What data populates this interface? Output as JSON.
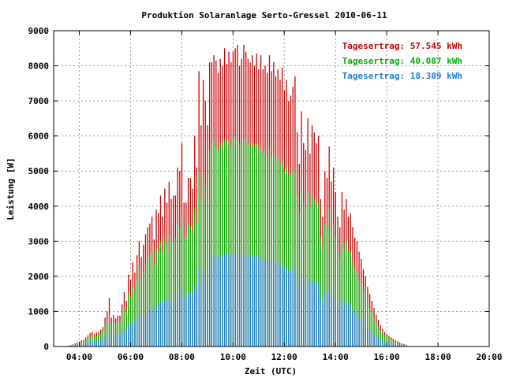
{
  "chart_data": {
    "type": "bar",
    "title": "Produktion Solaranlage Serto-Gressel 2010-06-11",
    "xlabel": "Zeit (UTC)",
    "ylabel": "Leistung [W]",
    "ylim": [
      0,
      9000
    ],
    "xlim": [
      "03:00",
      "20:00"
    ],
    "yticks": [
      "0",
      "1000",
      "2000",
      "3000",
      "4000",
      "5000",
      "6000",
      "7000",
      "8000",
      "9000"
    ],
    "xticks": [
      "04:00",
      "06:00",
      "08:00",
      "10:00",
      "12:00",
      "14:00",
      "16:00",
      "18:00",
      "20:00"
    ],
    "grid": true,
    "legend_position": "top-right",
    "interval_minutes": 5,
    "start_time": "03:35",
    "series": [
      {
        "name": "Tagesertrag: 57.545 kWh",
        "color": "#cc0000",
        "values": [
          20,
          40,
          60,
          90,
          110,
          140,
          170,
          200,
          260,
          320,
          380,
          420,
          360,
          400,
          420,
          480,
          560,
          820,
          1000,
          1380,
          820,
          900,
          800,
          880,
          880,
          1200,
          1550,
          1300,
          2050,
          1900,
          2400,
          2100,
          2600,
          3000,
          2550,
          2900,
          3200,
          3400,
          3500,
          3700,
          3050,
          3900,
          3800,
          4300,
          3700,
          4500,
          4100,
          4700,
          4200,
          4300,
          4300,
          5100,
          5000,
          5800,
          4100,
          4100,
          4800,
          4800,
          4500,
          6000,
          5100,
          7850,
          6300,
          7600,
          7000,
          6300,
          8100,
          8100,
          8300,
          8150,
          7800,
          8200,
          8000,
          8500,
          8050,
          8400,
          8100,
          8400,
          8500,
          8600,
          8000,
          8200,
          8600,
          8400,
          8200,
          8100,
          8300,
          8000,
          8350,
          7900,
          8300,
          7900,
          8000,
          7800,
          8300,
          7850,
          8100,
          7700,
          7900,
          7600,
          7950,
          7300,
          7600,
          7000,
          7150,
          7400,
          7700,
          6100,
          5200,
          6700,
          5800,
          5600,
          6500,
          5500,
          6300,
          6100,
          5800,
          6000,
          4200,
          3700,
          5000,
          4800,
          5700,
          4700,
          5100,
          4400,
          3700,
          3400,
          4400,
          3900,
          4200,
          3700,
          3800,
          3400,
          3100,
          3000,
          2700,
          2500,
          2200,
          2000,
          1700,
          1500,
          1300,
          1100,
          900,
          750,
          600,
          500,
          420,
          350,
          300,
          260,
          220,
          180,
          150,
          120,
          90,
          70,
          50
        ]
      },
      {
        "name": "Tagesertrag: 40.087 kWh",
        "color": "#00b000",
        "values": [
          15,
          30,
          50,
          70,
          90,
          110,
          130,
          150,
          200,
          240,
          280,
          300,
          270,
          300,
          320,
          360,
          420,
          600,
          720,
          900,
          640,
          700,
          650,
          680,
          700,
          900,
          1100,
          1000,
          1500,
          1400,
          1700,
          1550,
          1900,
          2200,
          1900,
          2100,
          2300,
          2500,
          2600,
          2700,
          2300,
          2800,
          2700,
          3000,
          2700,
          3100,
          2900,
          3200,
          3000,
          3000,
          3100,
          3500,
          3400,
          3700,
          3100,
          3100,
          3500,
          3400,
          3300,
          3900,
          3500,
          5000,
          4200,
          4900,
          4600,
          4200,
          5600,
          5800,
          5900,
          5700,
          5600,
          5800,
          5700,
          5900,
          5800,
          5900,
          5700,
          5900,
          6000,
          5900,
          5800,
          5800,
          5900,
          5900,
          5800,
          5700,
          5800,
          5700,
          5800,
          5600,
          5700,
          5500,
          5600,
          5400,
          5600,
          5400,
          5500,
          5300,
          5400,
          5200,
          5300,
          5000,
          5100,
          4900,
          4900,
          5000,
          5100,
          4300,
          3800,
          4500,
          4100,
          4000,
          4400,
          4000,
          4300,
          4200,
          4000,
          4100,
          3100,
          2800,
          3500,
          3400,
          3900,
          3300,
          3500,
          3100,
          2700,
          2500,
          3100,
          2800,
          3000,
          2700,
          2700,
          2400,
          2200,
          2100,
          1900,
          1800,
          1600,
          1500,
          1250,
          1100,
          950,
          800,
          680,
          560,
          450,
          380,
          320,
          270,
          230,
          200,
          170,
          140,
          110,
          90,
          70,
          50,
          35
        ]
      },
      {
        "name": "Tagesertrag: 18.309 kWh",
        "color": "#1a7fd4",
        "values": [
          8,
          15,
          25,
          35,
          45,
          55,
          65,
          80,
          100,
          120,
          140,
          150,
          140,
          150,
          160,
          180,
          200,
          280,
          340,
          420,
          320,
          340,
          320,
          330,
          340,
          420,
          500,
          480,
          650,
          620,
          740,
          700,
          820,
          920,
          830,
          900,
          980,
          1050,
          1100,
          1150,
          1000,
          1200,
          1180,
          1300,
          1200,
          1350,
          1280,
          1400,
          1320,
          1350,
          1380,
          1550,
          1500,
          1650,
          1400,
          1400,
          1550,
          1520,
          1480,
          1750,
          1600,
          2250,
          1900,
          2200,
          2100,
          1900,
          2500,
          2600,
          2650,
          2550,
          2500,
          2600,
          2550,
          2650,
          2600,
          2650,
          2550,
          2650,
          2700,
          2650,
          2600,
          2600,
          2650,
          2650,
          2600,
          2550,
          2600,
          2550,
          2600,
          2500,
          2550,
          2450,
          2500,
          2400,
          2500,
          2400,
          2450,
          2350,
          2400,
          2300,
          2350,
          2200,
          2250,
          2150,
          2150,
          2200,
          2250,
          1900,
          1700,
          2000,
          1800,
          1780,
          1950,
          1780,
          1900,
          1850,
          1780,
          1800,
          1400,
          1250,
          1550,
          1500,
          1700,
          1450,
          1550,
          1380,
          1200,
          1100,
          1350,
          1250,
          1300,
          1200,
          1180,
          1050,
          980,
          920,
          850,
          790,
          700,
          650,
          560,
          480,
          420,
          360,
          300,
          250,
          200,
          170,
          140,
          120,
          100,
          85,
          70,
          55,
          45,
          35,
          25,
          18,
          12
        ]
      }
    ]
  }
}
